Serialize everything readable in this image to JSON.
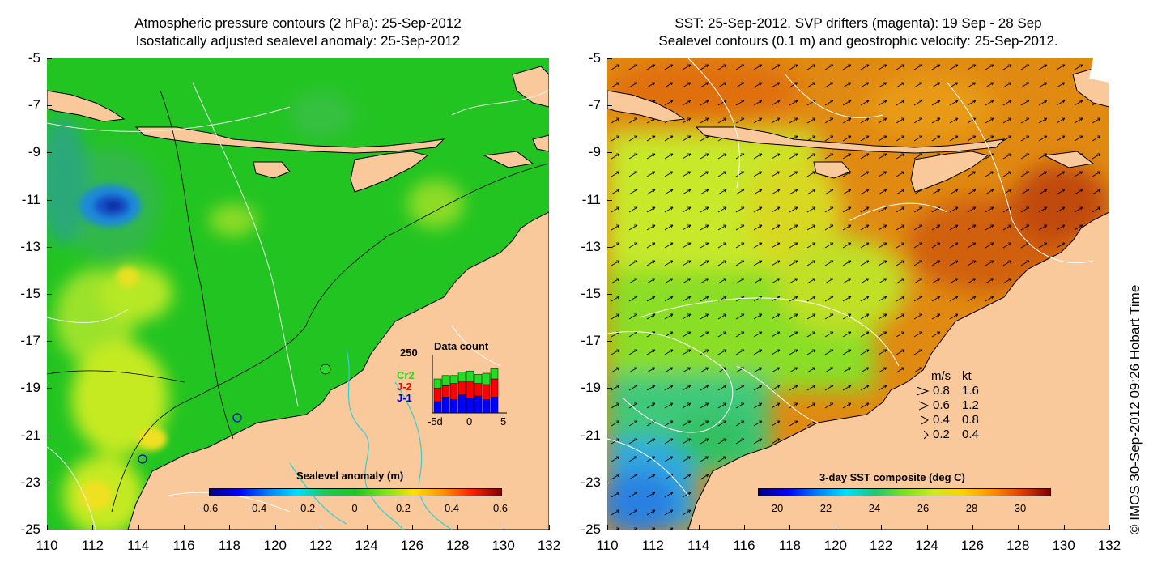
{
  "left_panel": {
    "title_line1": "Atmospheric pressure contours (2 hPa): 25-Sep-2012",
    "title_line2": "Isostatically adjusted sealevel anomaly: 25-Sep-2012",
    "colorbar": {
      "title": "Sealevel anomaly (m)",
      "labels": [
        "-0.6",
        "-0.4",
        "-0.2",
        "0",
        "0.2",
        "0.4",
        "0.6"
      ]
    },
    "data_count": {
      "title": "Data count",
      "ymax_label": "250",
      "x_labels": [
        "-5d",
        "0",
        "5"
      ],
      "legend": [
        {
          "label": "Cr2",
          "color": "#22dd22"
        },
        {
          "label": "J-2",
          "color": "#ff0000"
        },
        {
          "label": "J-1",
          "color": "#0000ff"
        }
      ]
    }
  },
  "right_panel": {
    "title_line1": "SST: 25-Sep-2012. SVP drifters (magenta): 19 Sep - 28 Sep",
    "title_line2": "Sealevel contours (0.1 m) and geostrophic velocity: 25-Sep-2012.",
    "colorbar": {
      "title": "3-day SST composite (deg C)",
      "labels": [
        "20",
        "22",
        "24",
        "26",
        "28",
        "30"
      ]
    },
    "velocity_legend": {
      "header_ms": "m/s",
      "header_kt": "kt",
      "rows": [
        {
          "ms": "0.8",
          "kt": "1.6"
        },
        {
          "ms": "0.6",
          "kt": "1.2"
        },
        {
          "ms": "0.4",
          "kt": "0.8"
        },
        {
          "ms": "0.2",
          "kt": "0.4"
        }
      ]
    }
  },
  "axes": {
    "y_labels": [
      "-5",
      "-7",
      "-9",
      "-11",
      "-13",
      "-15",
      "-17",
      "-19",
      "-21",
      "-23",
      "-25"
    ],
    "x_labels": [
      "110",
      "112",
      "114",
      "116",
      "118",
      "120",
      "122",
      "124",
      "126",
      "128",
      "130",
      "132"
    ]
  },
  "credit": "© IMOS 30-Sep-2012 09:26 Hobart Time",
  "colors": {
    "land": "#f9c89b",
    "sla_base": "#22c822",
    "sst_warm": "#e07a10",
    "sst_green": "#7ddc1e"
  }
}
